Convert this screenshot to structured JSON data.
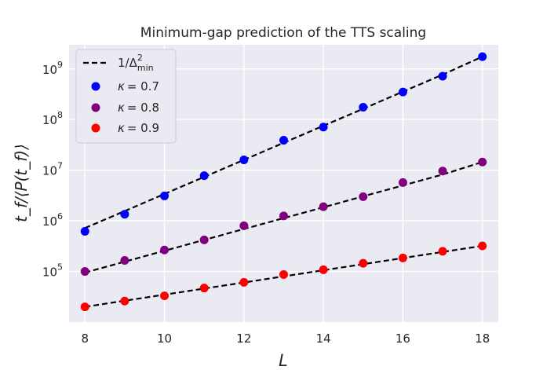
{
  "chart_data": {
    "type": "scatter",
    "title": "Minimum-gap prediction of the TTS scaling",
    "xlabel": "L",
    "ylabel": "t_f/⟨P(t_f)⟩",
    "xlim": [
      7.6,
      18.4
    ],
    "ylim": [
      10000,
      3000000000
    ],
    "yscale": "log",
    "grid": true,
    "legend_position": "top-left",
    "x_ticks": [
      8,
      10,
      12,
      14,
      16,
      18
    ],
    "y_ticks": [
      {
        "value": 100000,
        "base": "10",
        "exp": "5"
      },
      {
        "value": 1000000,
        "base": "10",
        "exp": "6"
      },
      {
        "value": 10000000,
        "base": "10",
        "exp": "7"
      },
      {
        "value": 100000000,
        "base": "10",
        "exp": "8"
      },
      {
        "value": 1000000000,
        "base": "10",
        "exp": "9"
      }
    ],
    "x": [
      8,
      9,
      10,
      11,
      12,
      13,
      14,
      15,
      16,
      17,
      18
    ],
    "series": [
      {
        "name": "κ = 0.7",
        "symbol": "κ",
        "eq": "= 0.7",
        "color": "#0000ff",
        "values": [
          620000,
          1350000,
          3100000,
          7800000,
          16000000,
          39000000,
          71000000,
          175000000,
          350000000,
          720000000,
          1750000000
        ],
        "fit": [
          720000,
          1560000,
          3390000,
          7360000,
          16000000,
          34700000,
          75300000,
          163000000,
          355000000,
          771000000,
          1750000000
        ]
      },
      {
        "name": "κ = 0.8",
        "symbol": "κ",
        "eq": "= 0.8",
        "color": "#800080",
        "values": [
          100000,
          165000,
          265000,
          420000,
          800000,
          1250000,
          1900000,
          3000000,
          5700000,
          9600000,
          14500000
        ],
        "fit": [
          95000,
          156000,
          256000,
          420000,
          690000,
          1130000,
          1850000,
          3050000,
          5000000,
          8200000,
          14500000
        ]
      },
      {
        "name": "κ = 0.9",
        "symbol": "κ",
        "eq": "= 0.9",
        "color": "#ff0000",
        "values": [
          20000,
          26000,
          33000,
          47000,
          61000,
          87000,
          108000,
          145000,
          185000,
          250000,
          320000
        ],
        "fit": [
          20000,
          26400,
          34800,
          45900,
          60600,
          80000,
          105600,
          139000,
          184000,
          243000,
          320000
        ]
      }
    ],
    "fit_legend": {
      "base": "1/Δ",
      "sup": "2",
      "sub": "min",
      "color": "#000000"
    }
  }
}
